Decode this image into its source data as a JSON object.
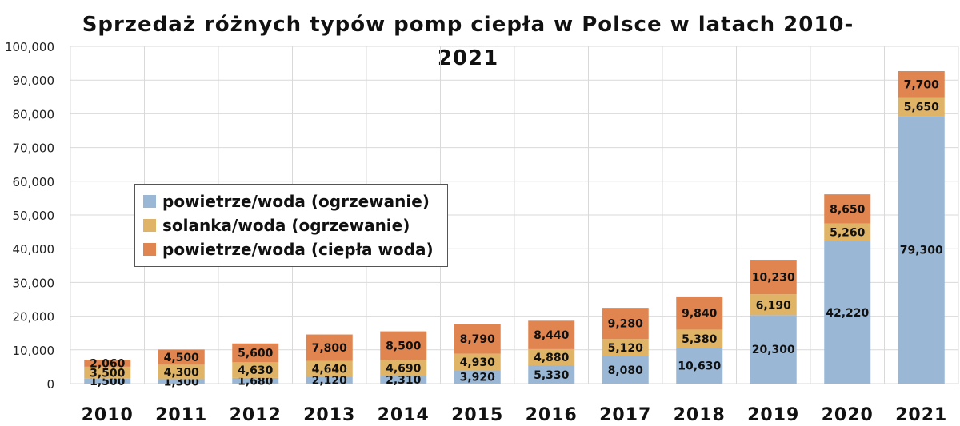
{
  "chart_data": {
    "type": "bar",
    "stacked": true,
    "title": "Sprzedaż różnych typów pomp ciepła w Polsce w latach 2010-\n2021",
    "xlabel": "",
    "ylabel": "",
    "categories": [
      "2010",
      "2011",
      "2012",
      "2013",
      "2014",
      "2015",
      "2016",
      "2017",
      "2018",
      "2019",
      "2020",
      "2021"
    ],
    "ylim": [
      0,
      100000
    ],
    "yticks": [
      0,
      10000,
      20000,
      30000,
      40000,
      50000,
      60000,
      70000,
      80000,
      90000,
      100000
    ],
    "ytick_labels": [
      "0",
      "10,000",
      "20,000",
      "30,000",
      "40,000",
      "50,000",
      "60,000",
      "70,000",
      "80,000",
      "90,000",
      "100,000"
    ],
    "grid": "vertical and horizontal, light gray",
    "legend_position": "center-left",
    "series": [
      {
        "name": "powietrze/woda (ogrzewanie)",
        "color": "#9ab8d6",
        "values": [
          1500,
          1300,
          1680,
          2120,
          2310,
          3920,
          5330,
          8080,
          10630,
          20300,
          42220,
          79300
        ],
        "labels": [
          "1,500",
          "1,300",
          "1,680",
          "2,120",
          "2,310",
          "3,920",
          "5,330",
          "8,080",
          "10,630",
          "20,300",
          "42,220",
          "79,300"
        ]
      },
      {
        "name": "solanka/woda (ogrzewanie)",
        "color": "#e0b466",
        "values": [
          3500,
          4300,
          4630,
          4640,
          4690,
          4930,
          4880,
          5120,
          5380,
          6190,
          5260,
          5650
        ],
        "labels": [
          "3,500",
          "4,300",
          "4,630",
          "4,640",
          "4,690",
          "4,930",
          "4,880",
          "5,120",
          "5,380",
          "6,190",
          "5,260",
          "5,650"
        ]
      },
      {
        "name": "powietrze/woda (ciepła woda)",
        "color": "#e0854f",
        "values": [
          2060,
          4500,
          5600,
          7800,
          8500,
          8790,
          8440,
          9280,
          9840,
          10230,
          8650,
          7700
        ],
        "labels": [
          "2,060",
          "4,500",
          "5,600",
          "7,800",
          "8,500",
          "8,790",
          "8,440",
          "9,280",
          "9,840",
          "10,230",
          "8,650",
          "7,700"
        ]
      }
    ]
  }
}
